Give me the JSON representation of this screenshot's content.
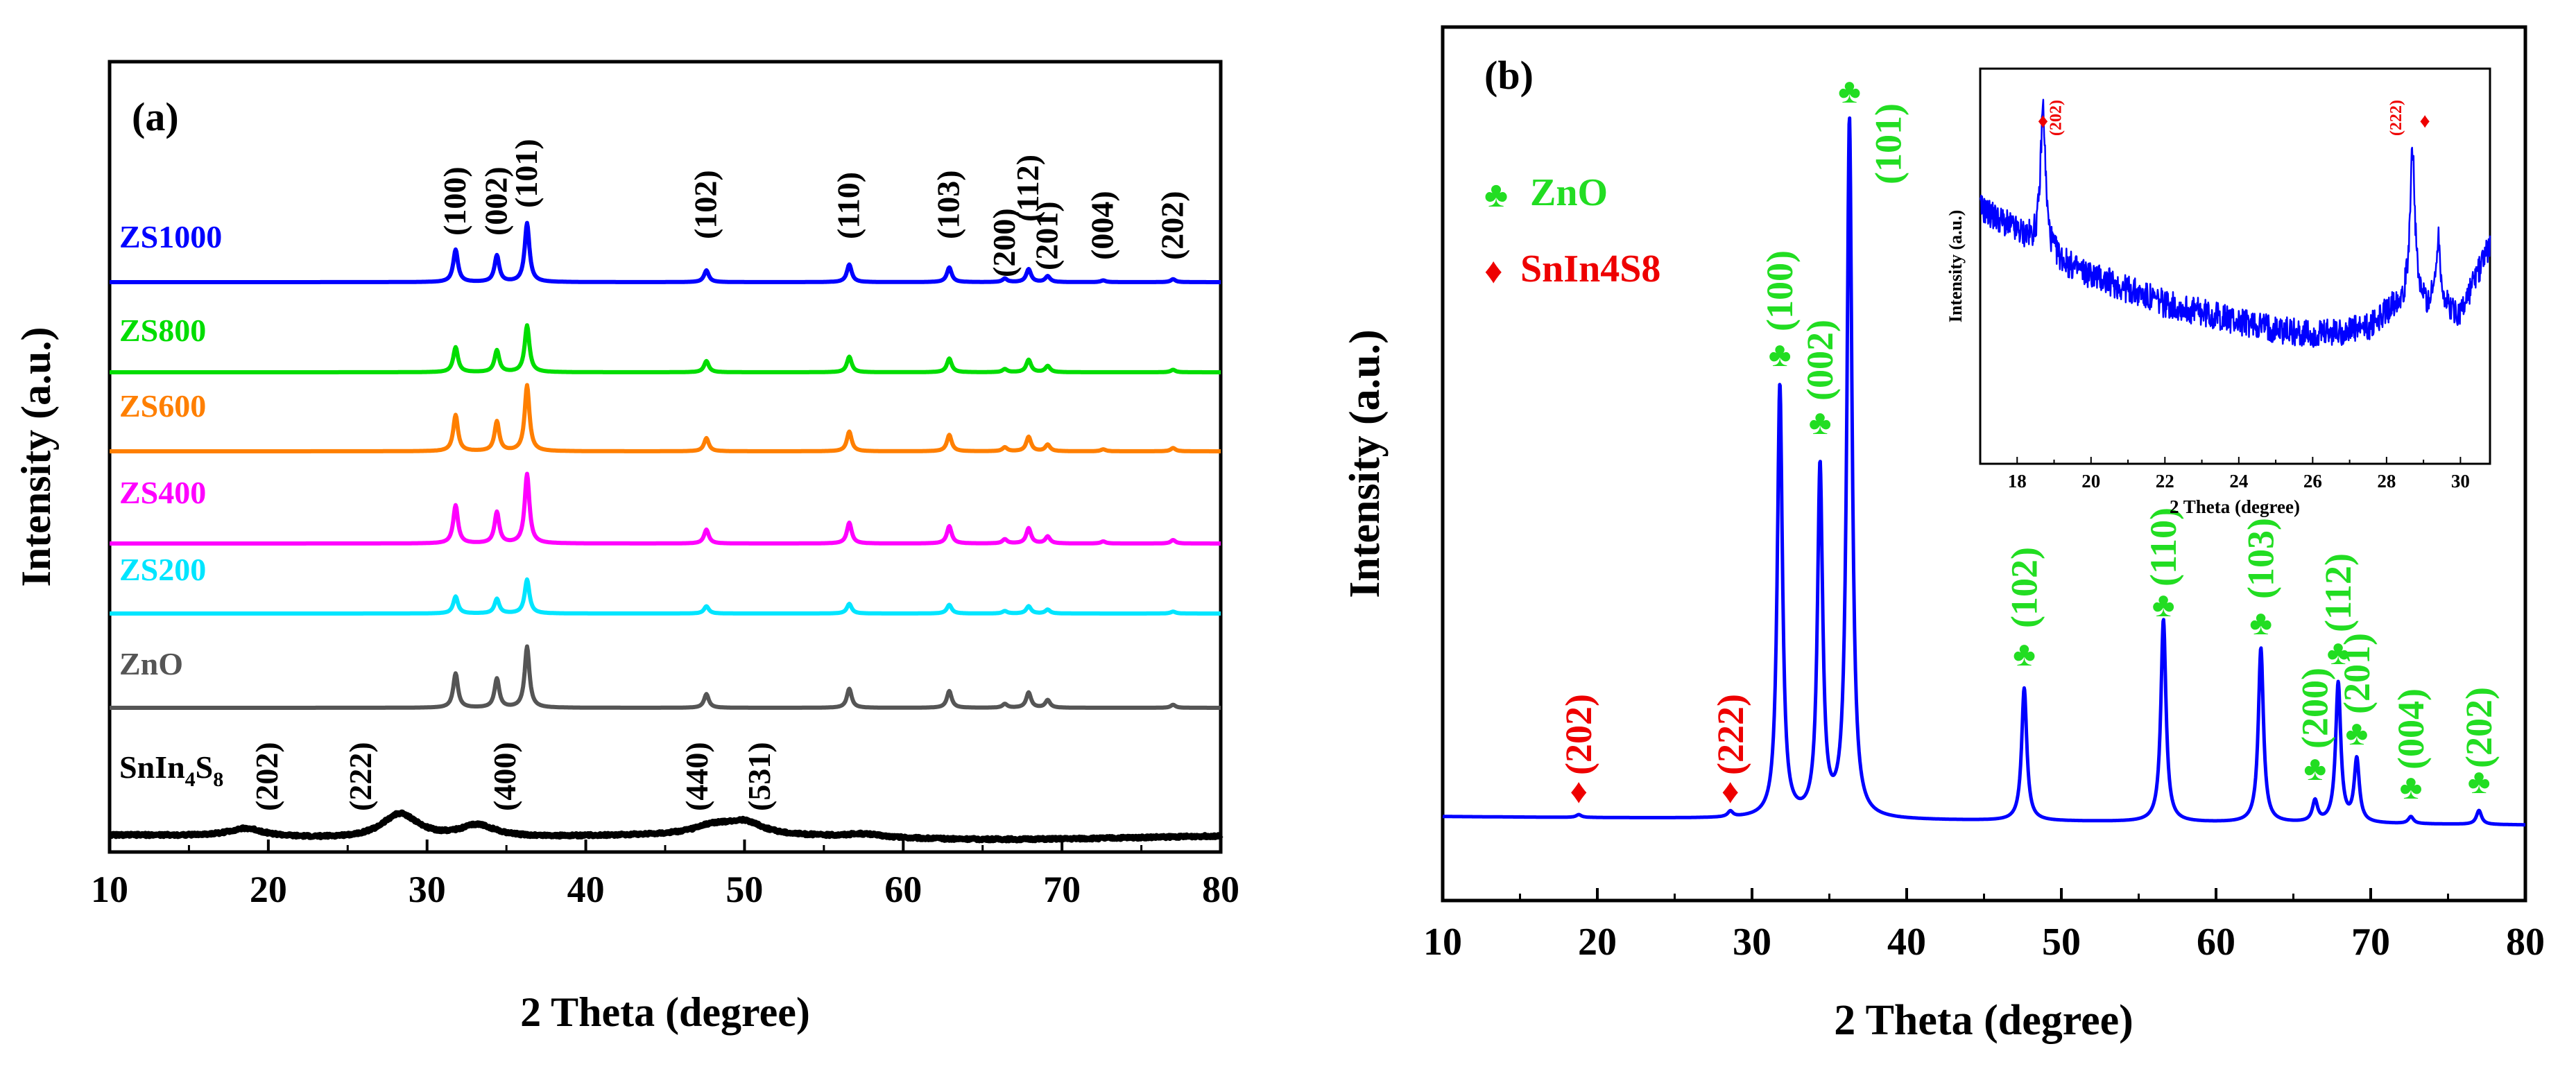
{
  "chart_data": [
    {
      "panel_label": "(a)",
      "type": "line",
      "title": "",
      "xlabel": "2 Theta (degree)",
      "ylabel": "Intensity (a.u.)",
      "xlim": [
        10,
        80
      ],
      "xticks": [
        10,
        20,
        30,
        40,
        50,
        60,
        70,
        80
      ],
      "peak_width": 0.18,
      "series": [
        {
          "name": "ZS1000",
          "name_sub": "",
          "color": "#0000ff",
          "baseline": 0,
          "noise": 0,
          "peaks": [
            [
              31.8,
              0.55
            ],
            [
              34.4,
              0.45
            ],
            [
              36.3,
              1.0
            ],
            [
              47.6,
              0.2
            ],
            [
              56.6,
              0.3
            ],
            [
              62.9,
              0.25
            ],
            [
              66.4,
              0.06
            ],
            [
              67.9,
              0.22
            ],
            [
              69.1,
              0.1
            ],
            [
              72.6,
              0.03
            ],
            [
              77.0,
              0.05
            ]
          ]
        },
        {
          "name": "ZS800",
          "name_sub": "",
          "color": "#00dd00",
          "baseline": 0,
          "noise": 0,
          "peaks": [
            [
              31.8,
              0.4
            ],
            [
              34.4,
              0.35
            ],
            [
              36.3,
              0.75
            ],
            [
              47.6,
              0.18
            ],
            [
              56.6,
              0.25
            ],
            [
              62.9,
              0.22
            ],
            [
              66.4,
              0.05
            ],
            [
              67.9,
              0.2
            ],
            [
              69.1,
              0.1
            ],
            [
              77.0,
              0.04
            ]
          ]
        },
        {
          "name": "ZS600",
          "name_sub": "",
          "color": "#ff7f00",
          "baseline": 0,
          "noise": 0,
          "peaks": [
            [
              31.8,
              0.55
            ],
            [
              34.4,
              0.45
            ],
            [
              36.3,
              1.0
            ],
            [
              47.6,
              0.2
            ],
            [
              56.6,
              0.3
            ],
            [
              62.9,
              0.25
            ],
            [
              66.4,
              0.06
            ],
            [
              67.9,
              0.22
            ],
            [
              69.1,
              0.1
            ],
            [
              72.6,
              0.03
            ],
            [
              77.0,
              0.05
            ]
          ]
        },
        {
          "name": "ZS400",
          "name_sub": "",
          "color": "#ff00ff",
          "baseline": 0,
          "noise": 0,
          "peaks": [
            [
              31.8,
              0.55
            ],
            [
              34.4,
              0.45
            ],
            [
              36.3,
              1.0
            ],
            [
              47.6,
              0.2
            ],
            [
              56.6,
              0.3
            ],
            [
              62.9,
              0.25
            ],
            [
              66.4,
              0.06
            ],
            [
              67.9,
              0.22
            ],
            [
              69.1,
              0.1
            ],
            [
              72.6,
              0.03
            ],
            [
              77.0,
              0.05
            ]
          ]
        },
        {
          "name": "ZS200",
          "name_sub": "",
          "color": "#00e5ff",
          "baseline": 0,
          "noise": 0,
          "peaks": [
            [
              31.8,
              0.35
            ],
            [
              34.4,
              0.3
            ],
            [
              36.3,
              0.7
            ],
            [
              47.6,
              0.15
            ],
            [
              56.6,
              0.2
            ],
            [
              62.9,
              0.18
            ],
            [
              66.4,
              0.05
            ],
            [
              67.9,
              0.15
            ],
            [
              69.1,
              0.08
            ],
            [
              77.0,
              0.04
            ]
          ]
        },
        {
          "name": "ZnO",
          "name_sub": "",
          "color": "#555555",
          "baseline": 0,
          "noise": 0,
          "peaks": [
            [
              31.8,
              0.45
            ],
            [
              34.4,
              0.38
            ],
            [
              36.3,
              0.8
            ],
            [
              47.6,
              0.18
            ],
            [
              56.6,
              0.25
            ],
            [
              62.9,
              0.22
            ],
            [
              66.4,
              0.05
            ],
            [
              67.9,
              0.2
            ],
            [
              69.1,
              0.1
            ],
            [
              77.0,
              0.04
            ]
          ]
        },
        {
          "name": "SnIn",
          "name_sub": "4",
          "name_rest": "S",
          "name_sub2": "8",
          "color": "#000000",
          "baseline": 0.1,
          "noise": 0.05,
          "peaks": [
            [
              18.6,
              0.2
            ],
            [
              28.3,
              0.6
            ],
            [
              33.2,
              0.3
            ],
            [
              48.0,
              0.2
            ],
            [
              50.0,
              0.3
            ],
            [
              57.5,
              0.08
            ]
          ]
        }
      ],
      "hkl_labels_top": [
        "(100)",
        "(002)",
        "(101)",
        "(102)",
        "(110)",
        "(103)",
        "(200)",
        "(112)",
        "(201)",
        "(004)",
        "(202)"
      ],
      "hkl_labels_top_x": [
        31.8,
        34.4,
        36.3,
        47.6,
        56.6,
        62.9,
        66.4,
        67.9,
        69.1,
        72.6,
        77.0
      ],
      "hkl_labels_bottom": [
        "(202)",
        "(222)",
        "(400)",
        "(440)",
        "(531)"
      ],
      "hkl_labels_bottom_x": [
        18.6,
        28.3,
        33.2,
        48.0,
        50.0
      ]
    },
    {
      "panel_label": "(b)",
      "type": "line",
      "title": "",
      "xlabel": "2 Theta (degree)",
      "ylabel": "Intensity (a.u.)",
      "xlim": [
        10,
        80
      ],
      "xticks": [
        10,
        20,
        30,
        40,
        50,
        60,
        70,
        80
      ],
      "ylim": [
        0,
        1.03
      ],
      "color": "#0000ff",
      "peak_width": 0.2,
      "peaks": [
        [
          18.8,
          0.004
        ],
        [
          28.6,
          0.008
        ],
        [
          31.8,
          0.62
        ],
        [
          34.4,
          0.5
        ],
        [
          36.3,
          1.0
        ],
        [
          47.6,
          0.19
        ],
        [
          56.6,
          0.29
        ],
        [
          62.9,
          0.25
        ],
        [
          66.4,
          0.03
        ],
        [
          67.9,
          0.2
        ],
        [
          69.1,
          0.09
        ],
        [
          72.6,
          0.01
        ],
        [
          77.0,
          0.02
        ]
      ],
      "legend": [
        {
          "symbol": "♣",
          "label": "ZnO",
          "color": "#22dd22"
        },
        {
          "symbol": "♦",
          "label": "SnIn4S8",
          "color": "#ee0000"
        }
      ],
      "annotations": [
        {
          "text": "(202)",
          "symbol": "♦",
          "x": 18.8,
          "color": "#ee0000"
        },
        {
          "text": "(222)",
          "symbol": "♦",
          "x": 28.6,
          "color": "#ee0000"
        },
        {
          "text": "(100)",
          "symbol": "♣",
          "x": 31.8,
          "color": "#22dd22"
        },
        {
          "text": "(002)",
          "symbol": "♣",
          "x": 34.4,
          "color": "#22dd22"
        },
        {
          "text": "(101)",
          "symbol": "♣",
          "x": 36.3,
          "color": "#22dd22"
        },
        {
          "text": "(102)",
          "symbol": "♣",
          "x": 47.6,
          "color": "#22dd22"
        },
        {
          "text": "(110)",
          "symbol": "♣",
          "x": 56.6,
          "color": "#22dd22"
        },
        {
          "text": "(103)",
          "symbol": "♣",
          "x": 62.9,
          "color": "#22dd22"
        },
        {
          "text": "(200)",
          "symbol": "♣",
          "x": 66.4,
          "color": "#22dd22"
        },
        {
          "text": "(112)",
          "symbol": "♣",
          "x": 67.9,
          "color": "#22dd22"
        },
        {
          "text": "(201)",
          "symbol": "♣",
          "x": 69.1,
          "color": "#22dd22"
        },
        {
          "text": "(004)",
          "symbol": "♣",
          "x": 72.6,
          "color": "#22dd22"
        },
        {
          "text": "(202)",
          "symbol": "♣",
          "x": 77.0,
          "color": "#22dd22"
        }
      ],
      "inset": {
        "type": "line",
        "xlabel": "2 Theta (degree)",
        "ylabel": "Intensity (a.u.)",
        "xlim": [
          17,
          30.8
        ],
        "xticks": [
          18,
          20,
          22,
          24,
          26,
          28,
          30
        ],
        "color": "#0000ff",
        "noise": 0.04,
        "background": [
          [
            17,
            0.72
          ],
          [
            19.5,
            0.55
          ],
          [
            22,
            0.45
          ],
          [
            24,
            0.4
          ],
          [
            26,
            0.36
          ],
          [
            27.5,
            0.38
          ],
          [
            28.3,
            0.45
          ],
          [
            30,
            0.42
          ],
          [
            30.8,
            0.62
          ]
        ],
        "peaks": [
          [
            18.7,
            0.4
          ],
          [
            28.7,
            0.45
          ],
          [
            29.4,
            0.2
          ]
        ],
        "annotations": [
          {
            "text": "(202)",
            "symbol": "♦",
            "x": 18.7,
            "color": "#ee0000"
          },
          {
            "text": "(222)",
            "symbol": "♦",
            "x": 28.7,
            "color": "#ee0000"
          }
        ]
      }
    }
  ]
}
